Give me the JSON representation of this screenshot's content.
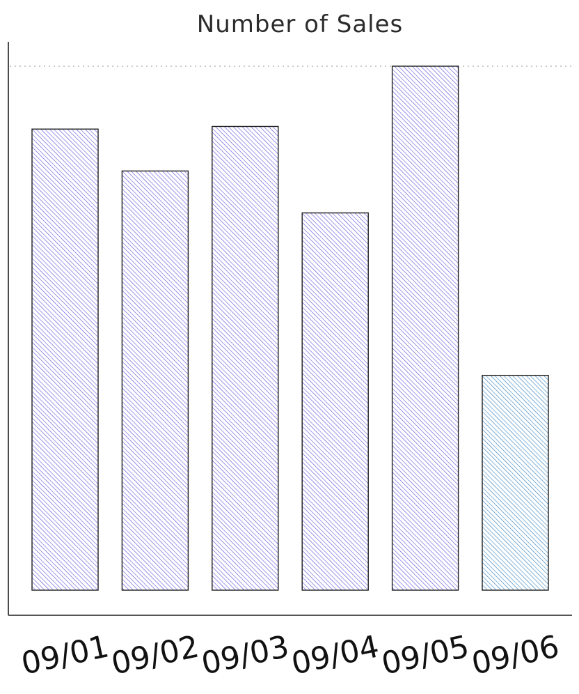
{
  "chart_data": {
    "type": "bar",
    "title": "Number of Sales",
    "xlabel": "",
    "ylabel": "",
    "categories": [
      "09/01",
      "09/02",
      "09/03",
      "09/04",
      "09/05",
      "09/06"
    ],
    "values": [
      88,
      80,
      88.5,
      72,
      100,
      41
    ],
    "ylim": [
      0,
      100
    ],
    "reference_line": 100,
    "grid": false,
    "legend": "none",
    "colors": {
      "bar": "#6a5de0",
      "highlight_bar": "#4a90c8",
      "outline": "#1e1e1e",
      "axis": "#1e1e1e",
      "reference_line": "#b8b8b8"
    },
    "highlight_index": 5
  }
}
